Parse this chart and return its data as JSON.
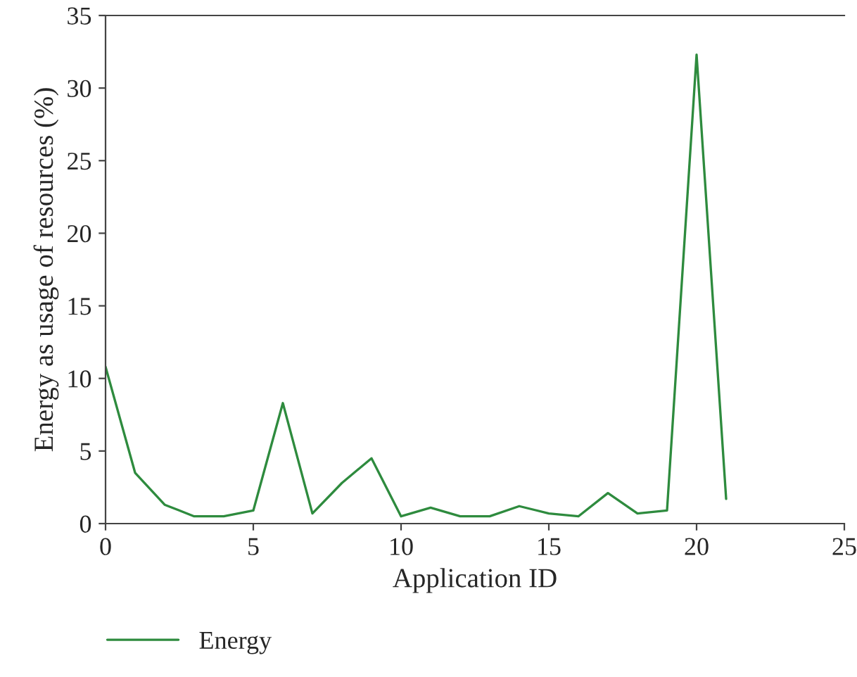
{
  "chart_data": {
    "type": "line",
    "xlabel": "Application ID",
    "ylabel": "Energy as usage of resources (%)",
    "x": [
      0,
      1,
      2,
      3,
      4,
      5,
      6,
      7,
      8,
      9,
      10,
      11,
      12,
      13,
      14,
      15,
      16,
      17,
      18,
      19,
      20,
      21
    ],
    "series": [
      {
        "name": "Energy",
        "color": "#2e8b3e",
        "values": [
          10.8,
          3.5,
          1.3,
          0.5,
          0.5,
          0.9,
          8.3,
          0.7,
          2.8,
          4.5,
          0.5,
          1.1,
          0.5,
          0.5,
          1.2,
          0.7,
          0.5,
          2.1,
          0.7,
          0.9,
          32.3,
          1.7
        ]
      }
    ],
    "xlim": [
      0,
      25
    ],
    "xticks": [
      0,
      5,
      10,
      15,
      20,
      25
    ],
    "ylim": [
      0,
      35
    ],
    "yticks": [
      0,
      5,
      10,
      15,
      20,
      25,
      30,
      35
    ],
    "legend": "bottom left",
    "grid": false
  }
}
